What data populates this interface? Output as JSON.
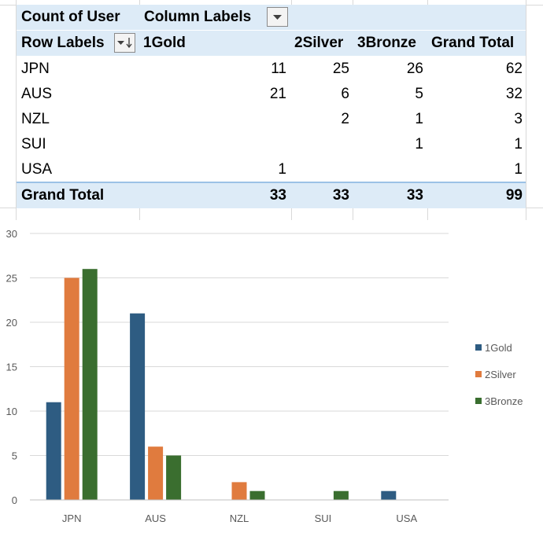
{
  "pivot": {
    "corner_label": "Count of User",
    "column_labels_header": "Column Labels",
    "row_labels_header": "Row Labels",
    "columns": [
      "1Gold",
      "2Silver",
      "3Bronze",
      "Grand Total"
    ],
    "rows": [
      {
        "label": "JPN",
        "values": [
          "11",
          "25",
          "26",
          "62"
        ]
      },
      {
        "label": "AUS",
        "values": [
          "21",
          "6",
          "5",
          "32"
        ]
      },
      {
        "label": "NZL",
        "values": [
          "",
          "2",
          "1",
          "3"
        ]
      },
      {
        "label": "SUI",
        "values": [
          "",
          "",
          "1",
          "1"
        ]
      },
      {
        "label": "USA",
        "values": [
          "1",
          "",
          "",
          "1"
        ]
      }
    ],
    "total": {
      "label": "Grand Total",
      "values": [
        "33",
        "33",
        "33",
        "99"
      ]
    }
  },
  "chart_data": {
    "type": "bar",
    "categories": [
      "JPN",
      "AUS",
      "NZL",
      "SUI",
      "USA"
    ],
    "series": [
      {
        "name": "1Gold",
        "color": "#2e5c82",
        "values": [
          11,
          21,
          0,
          0,
          1
        ]
      },
      {
        "name": "2Silver",
        "color": "#e07b3e",
        "values": [
          25,
          6,
          2,
          0,
          0
        ]
      },
      {
        "name": "3Bronze",
        "color": "#3a6e2f",
        "values": [
          26,
          5,
          1,
          1,
          0
        ]
      }
    ],
    "ylim": [
      0,
      30
    ],
    "yticks": [
      0,
      5,
      10,
      15,
      20,
      25,
      30
    ],
    "grid": true,
    "legend": "right",
    "title": "",
    "xlabel": "",
    "ylabel": ""
  }
}
